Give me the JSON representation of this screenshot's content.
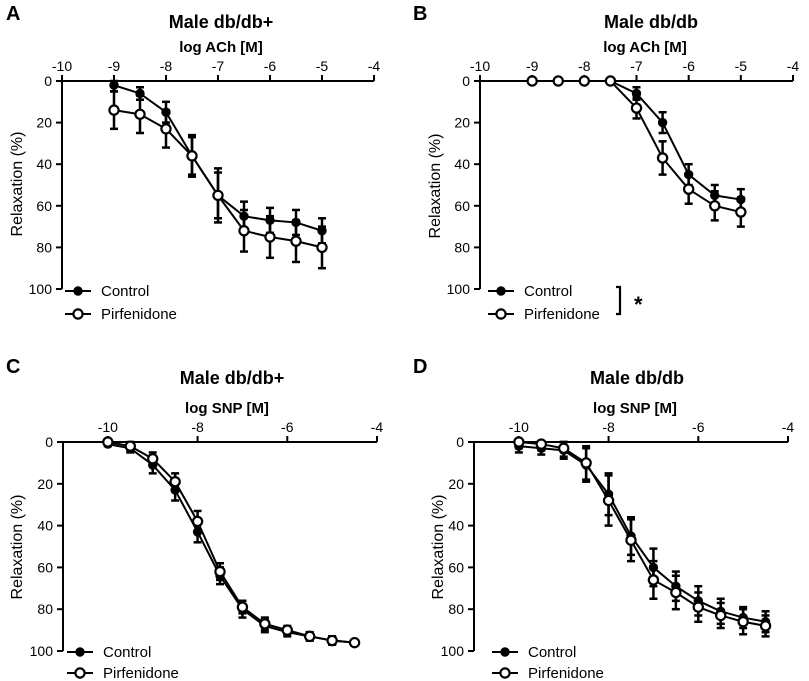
{
  "chart_data": [
    {
      "type": "line",
      "panel": "A",
      "title": "Male db/db+",
      "xlabel": "log ACh [M]",
      "ylabel": "Relaxation (%)",
      "xlim": [
        -10,
        -4
      ],
      "ylim": [
        0,
        100
      ],
      "y_inverted": true,
      "x_axis_position": "top",
      "xticks": [
        -10,
        -9,
        -8,
        -7,
        -6,
        -5,
        -4
      ],
      "yticks": [
        0,
        20,
        40,
        60,
        80,
        100
      ],
      "legend": "bottom-left",
      "significance": "",
      "series": [
        {
          "name": "Control",
          "marker": "filled",
          "x": [
            -9,
            -8.5,
            -8,
            -7.5,
            -7,
            -6.5,
            -6,
            -5.5,
            -5
          ],
          "y": [
            2,
            6,
            15,
            36,
            55,
            65,
            67,
            68,
            72
          ],
          "err": [
            3,
            3,
            5,
            9,
            11,
            7,
            6,
            6,
            6
          ]
        },
        {
          "name": "Pirfenidone",
          "marker": "open",
          "x": [
            -9,
            -8.5,
            -8,
            -7.5,
            -7,
            -6.5,
            -6,
            -5.5,
            -5
          ],
          "y": [
            14,
            16,
            23,
            36,
            55,
            72,
            75,
            77,
            80
          ],
          "err": [
            9,
            9,
            9,
            10,
            13,
            10,
            10,
            10,
            10
          ]
        }
      ]
    },
    {
      "type": "line",
      "panel": "B",
      "title": "Male db/db",
      "xlabel": "log ACh [M]",
      "ylabel": "Relaxation (%)",
      "xlim": [
        -10,
        -4
      ],
      "ylim": [
        0,
        100
      ],
      "y_inverted": true,
      "x_axis_position": "top",
      "xticks": [
        -10,
        -9,
        -8,
        -7,
        -6,
        -5,
        -4
      ],
      "yticks": [
        0,
        20,
        40,
        60,
        80,
        100
      ],
      "legend": "bottom-left",
      "significance": "*",
      "series": [
        {
          "name": "Control",
          "marker": "filled",
          "x": [
            -9,
            -8.5,
            -8,
            -7.5,
            -7,
            -6.5,
            -6,
            -5.5,
            -5
          ],
          "y": [
            0,
            0,
            0,
            0,
            6,
            20,
            45,
            55,
            57
          ],
          "err": [
            0,
            0,
            0,
            0,
            3,
            5,
            5,
            5,
            5
          ]
        },
        {
          "name": "Pirfenidone",
          "marker": "open",
          "x": [
            -9,
            -8.5,
            -8,
            -7.5,
            -7,
            -6.5,
            -6,
            -5.5,
            -5
          ],
          "y": [
            0,
            0,
            0,
            0,
            13,
            37,
            52,
            60,
            63
          ],
          "err": [
            0,
            0,
            0,
            0,
            5,
            8,
            7,
            7,
            7
          ]
        }
      ]
    },
    {
      "type": "line",
      "panel": "C",
      "title": "Male db/db+",
      "xlabel": "log SNP [M]",
      "ylabel": "Relaxation (%)",
      "xlim": [
        -11,
        -4
      ],
      "ylim": [
        0,
        100
      ],
      "y_inverted": true,
      "x_axis_position": "top",
      "xticks": [
        -10,
        -8,
        -6,
        -4
      ],
      "yticks": [
        0,
        20,
        40,
        60,
        80,
        100
      ],
      "legend": "bottom-left",
      "significance": "",
      "series": [
        {
          "name": "Control",
          "marker": "filled",
          "x": [
            -10,
            -9.5,
            -9,
            -8.5,
            -8,
            -7.5,
            -7,
            -6.5,
            -6,
            -5.5,
            -5,
            -4.5
          ],
          "y": [
            1,
            3,
            11,
            23,
            43,
            64,
            80,
            88,
            91,
            93,
            95,
            96
          ],
          "err": [
            1,
            2,
            4,
            5,
            5,
            4,
            4,
            3,
            2,
            2,
            2,
            1
          ]
        },
        {
          "name": "Pirfenidone",
          "marker": "open",
          "x": [
            -10,
            -9.5,
            -9,
            -8.5,
            -8,
            -7.5,
            -7,
            -6.5,
            -6,
            -5.5,
            -5,
            -4.5
          ],
          "y": [
            0,
            2,
            8,
            19,
            38,
            62,
            79,
            87,
            90,
            93,
            95,
            96
          ],
          "err": [
            1,
            2,
            3,
            4,
            5,
            4,
            3,
            3,
            2,
            2,
            2,
            1
          ]
        }
      ]
    },
    {
      "type": "line",
      "panel": "D",
      "title": "Male db/db",
      "xlabel": "log SNP [M]",
      "ylabel": "Relaxation (%)",
      "xlim": [
        -11,
        -4
      ],
      "ylim": [
        0,
        100
      ],
      "y_inverted": true,
      "x_axis_position": "top",
      "xticks": [
        -10,
        -8,
        -6,
        -4
      ],
      "yticks": [
        0,
        20,
        40,
        60,
        80,
        100
      ],
      "legend": "bottom-left",
      "significance": "",
      "series": [
        {
          "name": "Control",
          "marker": "filled",
          "x": [
            -10,
            -9.5,
            -9,
            -8.5,
            -8,
            -7.5,
            -7,
            -6.5,
            -6,
            -5.5,
            -5,
            -4.5
          ],
          "y": [
            2,
            3,
            4,
            11,
            25,
            45,
            60,
            69,
            76,
            81,
            84,
            86
          ],
          "err": [
            3,
            3,
            4,
            8,
            10,
            9,
            9,
            7,
            7,
            6,
            5,
            5
          ]
        },
        {
          "name": "Pirfenidone",
          "marker": "open",
          "x": [
            -10,
            -9.5,
            -9,
            -8.5,
            -8,
            -7.5,
            -7,
            -6.5,
            -6,
            -5.5,
            -5,
            -4.5
          ],
          "y": [
            0,
            1,
            3,
            10,
            28,
            47,
            66,
            72,
            79,
            83,
            86,
            88
          ],
          "err": [
            3,
            3,
            4,
            8,
            12,
            10,
            9,
            8,
            7,
            6,
            6,
            5
          ]
        }
      ]
    }
  ]
}
